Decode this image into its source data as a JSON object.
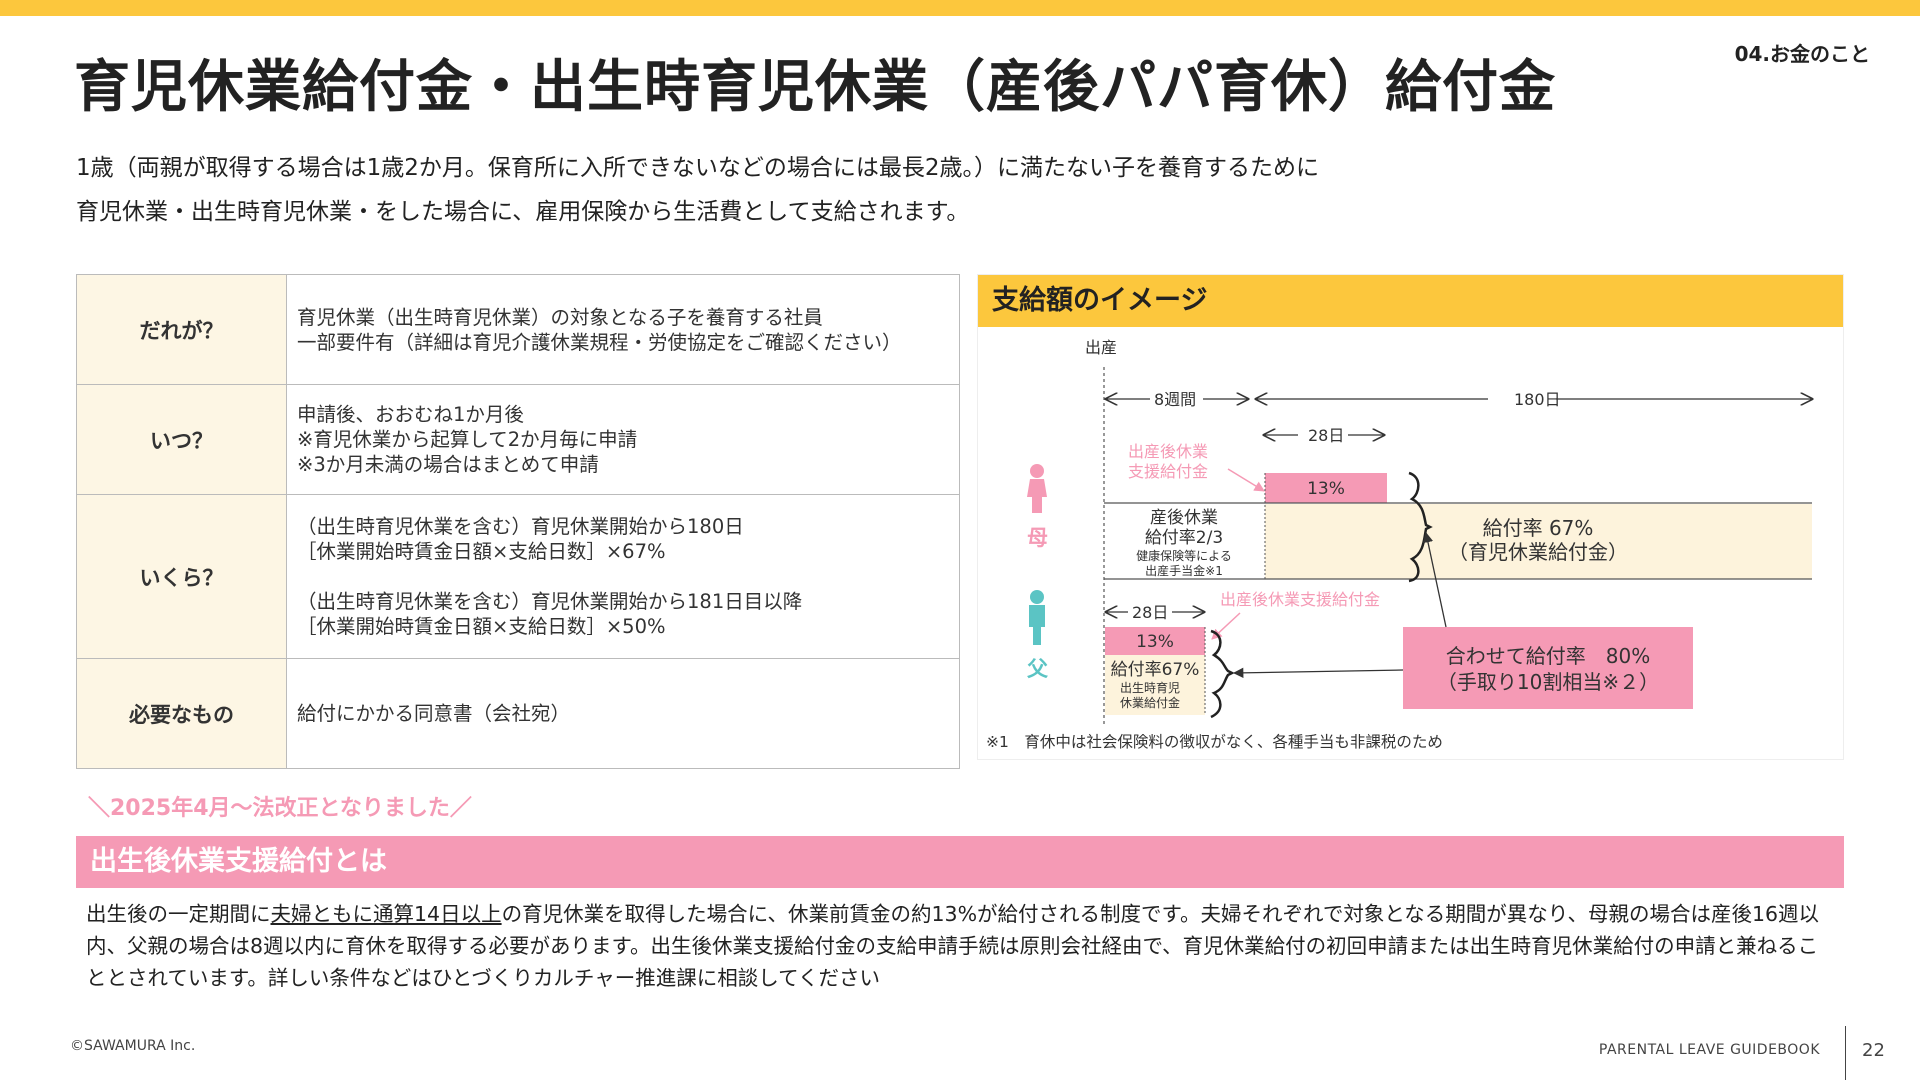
{
  "header": {
    "section_label": "04.お金のこと",
    "title": "育児休業給付金・出生時育児休業（産後パパ育休）給付金"
  },
  "intro": [
    "1歳（両親が取得する場合は1歳2か月。保育所に入所できないなどの場合には最長2歳。）に満たない子を養育するために",
    "育児休業・出生時育児休業・をした場合に、雇用保険から生活費として支給されます。"
  ],
  "table": {
    "rows": [
      {
        "head": "だれが？",
        "lines": [
          "育児休業（出生時育児休業）の対象となる子を養育する社員",
          "一部要件有（詳細は育児介護休業規程・労使協定をご確認ください）"
        ]
      },
      {
        "head": "いつ？",
        "lines": [
          "申請後、おおむね1か月後",
          "※育児休業から起算して2か月毎に申請",
          "※3か月未満の場合はまとめて申請"
        ]
      },
      {
        "head": "いくら？",
        "lines": [
          "（出生時育児休業を含む）育児休業開始から180日",
          "［休業開始時賃金日額×支給日数］×67%",
          "",
          "（出生時育児休業を含む）育児休業開始から181日目以降",
          "［休業開始時賃金日額×支給日数］×50%"
        ]
      },
      {
        "head": "必要なもの",
        "lines": [
          "給付にかかる同意書（会社宛）"
        ]
      }
    ]
  },
  "image": {
    "header": "支給額のイメージ",
    "birth": "出産",
    "weeks8": "8週間",
    "days180": "180日",
    "days28_mother": "28日",
    "support_label_mother_1": "出産後休業",
    "support_label_mother_2": "支援給付金",
    "pct13_mother": "13%",
    "maternity_1": "産後休業",
    "maternity_2": "給付率2/3",
    "maternity_3": "健康保険等による",
    "maternity_4": "出産手当金※1",
    "rate67_1": "給付率 67%",
    "rate67_2": "（育児休業給付金）",
    "mother": "母",
    "father": "父",
    "days28_father": "28日",
    "support_label_father": "出産後休業支援給付金",
    "pct13_father": "13%",
    "father_rate_1": "給付率67%",
    "father_rate_2": "出生時育児",
    "father_rate_3": "休業給付金",
    "combined_1": "合わせて給付率　80%",
    "combined_2": "（手取り10割相当※２）",
    "footnote": "※1　育休中は社会保険料の徴収がなく、各種手当も非課税のため",
    "colors": {
      "pink": "#f59ab5",
      "teal": "#5bc4c4",
      "beige": "#fdf3dc",
      "yellow": "#fcc73d"
    }
  },
  "law": {
    "note": "＼2025年4月～法改正となりました／",
    "title": "出生後休業支援給付とは",
    "desc_before": "出生後の一定期間に",
    "desc_underline": "夫婦ともに通算14日以上",
    "desc_after": "の育児休業を取得した場合に、休業前賃金の約13%が給付される制度です。夫婦それぞれで対象となる期間が異なり、母親の場合は産後16週以内、父親の場合は8週以内に育休を取得する必要があります。出生後休業支援給付金の支給申請手続は原則会社経由で、育児休業給付の初回申請または出生時育児休業給付の申請と兼ねることとされています。詳しい条件などはひとづくりカルチャー推進課に相談してください"
  },
  "footer": {
    "copyright": "©SAWAMURA Inc.",
    "book": "PARENTAL LEAVE GUIDEBOOK",
    "page": "22"
  }
}
